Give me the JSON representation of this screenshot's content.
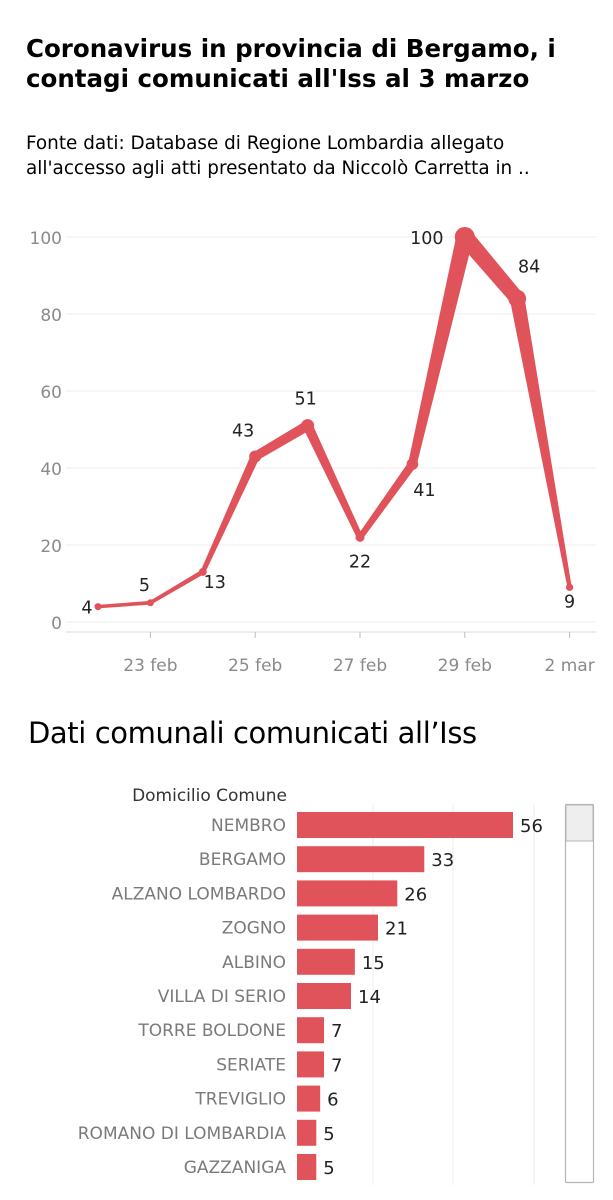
{
  "title": "Coronavirus in provincia di Bergamo, i contagi comunicati all'Iss al 3 marzo",
  "subtitle": "Fonte dati: Database di Regione Lombardia allegato all'accesso agli atti presentato da Niccolò Carretta in ..",
  "chart_data": [
    {
      "type": "line",
      "x": [
        "2020-02-22",
        "2020-02-23",
        "2020-02-24",
        "2020-02-25",
        "2020-02-26",
        "2020-02-27",
        "2020-02-28",
        "2020-02-29",
        "2020-03-01",
        "2020-03-02"
      ],
      "values": [
        4,
        5,
        13,
        43,
        51,
        22,
        41,
        100,
        84,
        9
      ],
      "data_labels": [
        "4",
        "5",
        "13",
        "43",
        "51",
        "22",
        "41",
        "100",
        "84",
        "9"
      ],
      "x_ticks": [
        "23 feb",
        "25 feb",
        "27 feb",
        "29 feb",
        "2 mar"
      ],
      "y_ticks": [
        0,
        20,
        40,
        60,
        80,
        100
      ],
      "ylim": [
        0,
        105
      ],
      "line_width_encodes_value": true,
      "grid": "horizontal",
      "color": "#e0535b"
    },
    {
      "type": "bar",
      "orientation": "horizontal",
      "title": "Dati comunali comunicati all’Iss",
      "category_header": "Domicilio Comune",
      "categories": [
        "NEMBRO",
        "BERGAMO",
        "ALZANO LOMBARDO",
        "ZOGNO",
        "ALBINO",
        "VILLA DI SERIO",
        "TORRE BOLDONE",
        "SERIATE",
        "TREVIGLIO",
        "ROMANO DI LOMBARDIA",
        "GAZZANIGA"
      ],
      "values": [
        56,
        33,
        26,
        21,
        15,
        14,
        7,
        7,
        6,
        5,
        5
      ],
      "grid": "vertical",
      "color": "#e0535b",
      "scrollbar": true
    }
  ]
}
